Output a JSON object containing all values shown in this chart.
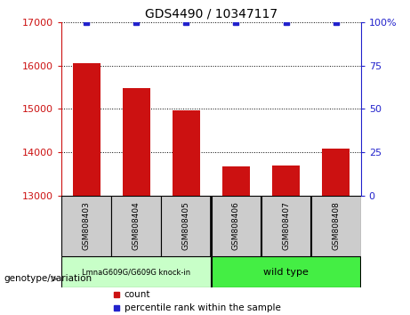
{
  "title": "GDS4490 / 10347117",
  "samples": [
    "GSM808403",
    "GSM808404",
    "GSM808405",
    "GSM808406",
    "GSM808407",
    "GSM808408"
  ],
  "counts": [
    16050,
    15480,
    14960,
    13680,
    13700,
    14080
  ],
  "percentile_ranks": [
    100,
    100,
    100,
    100,
    100,
    100
  ],
  "ylim": [
    13000,
    17000
  ],
  "yticks_left": [
    13000,
    14000,
    15000,
    16000,
    17000
  ],
  "yticks_right": [
    0,
    25,
    50,
    75,
    100
  ],
  "right_ylabels": [
    "0",
    "25",
    "50",
    "75",
    "100%"
  ],
  "bar_color": "#cc1111",
  "percentile_color": "#2222cc",
  "background_color": "#ffffff",
  "left_tick_color": "#cc1111",
  "right_tick_color": "#2222cc",
  "group1_label": "LmnaG609G/G609G knock-in",
  "group2_label": "wild type",
  "group1_color": "#c8ffc8",
  "group2_color": "#44ee44",
  "genotype_label": "genotype/variation",
  "legend_count_label": "count",
  "legend_percentile_label": "percentile rank within the sample",
  "sample_box_color": "#cccccc",
  "bar_width": 0.55,
  "n_group1": 3,
  "n_group2": 3
}
